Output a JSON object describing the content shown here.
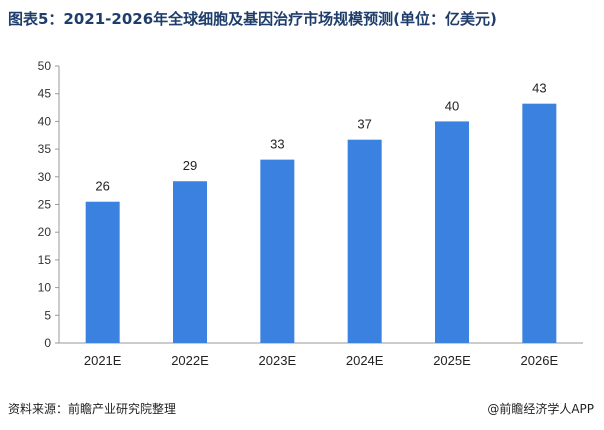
{
  "title": "图表5：2021-2026年全球细胞及基因治疗市场规模预测(单位：亿美元)",
  "source": "资料来源：前瞻产业研究院整理",
  "credit": "@前瞻经济学人APP",
  "chart_data": {
    "type": "bar",
    "categories": [
      "2021E",
      "2022E",
      "2023E",
      "2024E",
      "2025E",
      "2026E"
    ],
    "values": [
      25.5,
      29.2,
      33.1,
      36.7,
      40.0,
      43.2
    ],
    "data_labels": [
      "26",
      "29",
      "33",
      "37",
      "40",
      "43"
    ],
    "ylim": [
      0,
      50
    ],
    "yticks": [
      0,
      5,
      10,
      15,
      20,
      25,
      30,
      35,
      40,
      45,
      50
    ],
    "bar_color": "#3b82e0",
    "grid": false
  }
}
